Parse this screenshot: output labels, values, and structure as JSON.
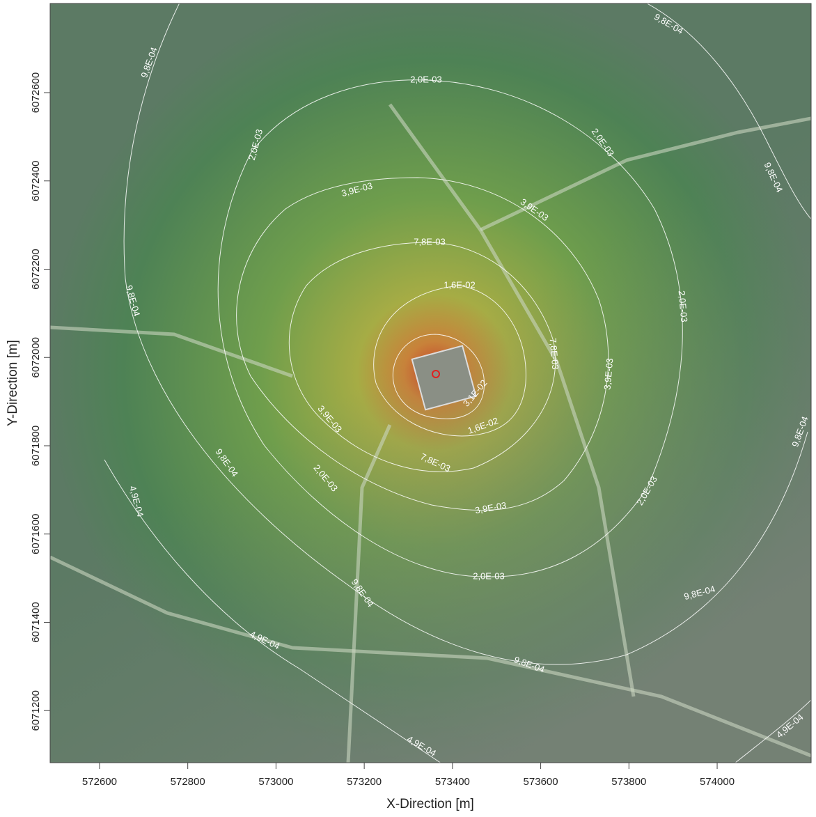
{
  "map": {
    "x_axis_label": "X-Direction [m]",
    "y_axis_label": "Y-Direction [m]",
    "xlim": [
      572488,
      574213
    ],
    "ylim": [
      6071082,
      6072802
    ],
    "xticks": [
      572600,
      572800,
      573000,
      573200,
      573400,
      573600,
      573800,
      574000
    ],
    "yticks": [
      6071200,
      6071400,
      6071600,
      6071800,
      6072000,
      6072200,
      6072400,
      6072600
    ],
    "contours": [
      {
        "value": 0.00049,
        "label": "4,9E-04"
      },
      {
        "value": 0.00098,
        "label": "9,8E-04"
      },
      {
        "value": 0.002,
        "label": "2,0E-03"
      },
      {
        "value": 0.0039,
        "label": "3,9E-03"
      },
      {
        "value": 0.0078,
        "label": "7,8E-03"
      },
      {
        "value": 0.016,
        "label": "1,6E-02"
      },
      {
        "value": 0.031,
        "label": "3,1E-02"
      }
    ]
  }
}
